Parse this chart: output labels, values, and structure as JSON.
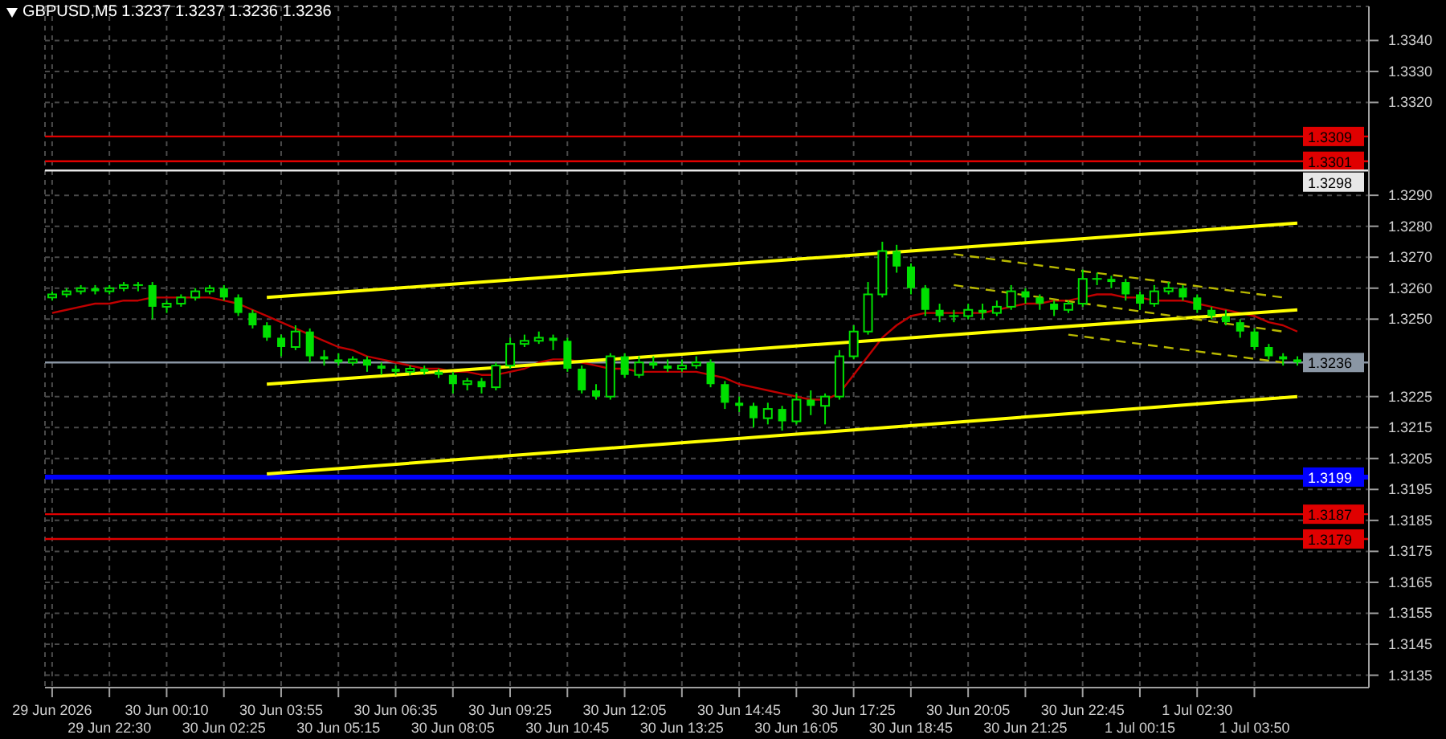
{
  "chart_data": {
    "type": "candlestick",
    "title": "GBPUSD,M5  1.3237 1.3237 1.3236 1.3236",
    "color": "#00e000",
    "categories": [
      "29 Jun 2026",
      null,
      null,
      null,
      "29 Jun 22:30",
      null,
      null,
      null,
      "30 Jun 00:10",
      null,
      null,
      null,
      "30 Jun 02:25",
      null,
      null,
      null,
      "30 Jun 03:55",
      null,
      null,
      null,
      "30 Jun 05:15",
      null,
      null,
      null,
      "30 Jun 06:35",
      null,
      null,
      null,
      "30 Jun 08:05",
      null,
      null,
      null,
      "30 Jun 09:25",
      null,
      null,
      null,
      "30 Jun 10:45",
      null,
      null,
      null,
      "30 Jun 12:05",
      null,
      null,
      null,
      "30 Jun 13:25",
      null,
      null,
      null,
      "30 Jun 14:45",
      null,
      null,
      null,
      "30 Jun 16:05",
      null,
      null,
      null,
      "30 Jun 17:25",
      null,
      null,
      null,
      "30 Jun 18:45",
      null,
      null,
      null,
      "30 Jun 20:05",
      null,
      null,
      null,
      "30 Jun 21:25",
      null,
      null,
      null,
      "30 Jun 22:45",
      null,
      null,
      null,
      "1 Jul 00:15",
      null,
      null,
      null,
      "1 Jul 02:30",
      null,
      null,
      null,
      "1 Jul 03:50",
      null,
      null,
      null
    ],
    "ohlc": [
      [
        1.3257,
        1.3259,
        1.3256,
        1.3258
      ],
      [
        1.3258,
        1.326,
        1.3257,
        1.3259
      ],
      [
        1.3259,
        1.3261,
        1.3258,
        1.326
      ],
      [
        1.326,
        1.3261,
        1.3258,
        1.3259
      ],
      [
        1.3259,
        1.3261,
        1.3258,
        1.326
      ],
      [
        1.326,
        1.3262,
        1.3259,
        1.3261
      ],
      [
        1.3261,
        1.3262,
        1.3259,
        1.3261
      ],
      [
        1.3261,
        1.3262,
        1.325,
        1.3254
      ],
      [
        1.3254,
        1.3256,
        1.3252,
        1.3255
      ],
      [
        1.3255,
        1.3258,
        1.3254,
        1.3257
      ],
      [
        1.3257,
        1.326,
        1.3256,
        1.3259
      ],
      [
        1.3259,
        1.3261,
        1.3258,
        1.326
      ],
      [
        1.326,
        1.3261,
        1.3256,
        1.3257
      ],
      [
        1.3257,
        1.3258,
        1.3251,
        1.3252
      ],
      [
        1.3252,
        1.3253,
        1.3247,
        1.3248
      ],
      [
        1.3248,
        1.3249,
        1.3243,
        1.3244
      ],
      [
        1.3244,
        1.3245,
        1.3238,
        1.3241
      ],
      [
        1.3241,
        1.3248,
        1.324,
        1.3246
      ],
      [
        1.3246,
        1.3247,
        1.3236,
        1.3238
      ],
      [
        1.3238,
        1.324,
        1.3235,
        1.3237
      ],
      [
        1.3237,
        1.3239,
        1.3235,
        1.3236
      ],
      [
        1.3236,
        1.3238,
        1.3235,
        1.3237
      ],
      [
        1.3237,
        1.3238,
        1.3233,
        1.3235
      ],
      [
        1.3235,
        1.3236,
        1.3232,
        1.3234
      ],
      [
        1.3234,
        1.3235,
        1.3232,
        1.3233
      ],
      [
        1.3233,
        1.3235,
        1.3232,
        1.3234
      ],
      [
        1.3234,
        1.3235,
        1.3232,
        1.3233
      ],
      [
        1.3233,
        1.3234,
        1.3231,
        1.3232
      ],
      [
        1.3232,
        1.3233,
        1.3226,
        1.3229
      ],
      [
        1.3229,
        1.3231,
        1.3227,
        1.323
      ],
      [
        1.323,
        1.3231,
        1.3226,
        1.3228
      ],
      [
        1.3228,
        1.3236,
        1.3227,
        1.3235
      ],
      [
        1.3235,
        1.3244,
        1.3234,
        1.3242
      ],
      [
        1.3242,
        1.3245,
        1.3241,
        1.3243
      ],
      [
        1.3243,
        1.3246,
        1.3242,
        1.3244
      ],
      [
        1.3244,
        1.3245,
        1.324,
        1.3243
      ],
      [
        1.3243,
        1.3244,
        1.3233,
        1.3234
      ],
      [
        1.3234,
        1.3235,
        1.3226,
        1.3227
      ],
      [
        1.3227,
        1.3229,
        1.3224,
        1.3225
      ],
      [
        1.3225,
        1.3239,
        1.3224,
        1.3238
      ],
      [
        1.3238,
        1.3239,
        1.3231,
        1.3232
      ],
      [
        1.3232,
        1.3238,
        1.3231,
        1.3236
      ],
      [
        1.3236,
        1.3238,
        1.3234,
        1.3235
      ],
      [
        1.3235,
        1.3237,
        1.3233,
        1.3234
      ],
      [
        1.3234,
        1.3237,
        1.3233,
        1.3235
      ],
      [
        1.3235,
        1.3238,
        1.3234,
        1.3236
      ],
      [
        1.3236,
        1.3237,
        1.3228,
        1.3229
      ],
      [
        1.3229,
        1.323,
        1.3221,
        1.3223
      ],
      [
        1.3223,
        1.3225,
        1.322,
        1.3222
      ],
      [
        1.3222,
        1.3223,
        1.3215,
        1.3218
      ],
      [
        1.3218,
        1.3223,
        1.3216,
        1.3221
      ],
      [
        1.3221,
        1.3222,
        1.3214,
        1.3217
      ],
      [
        1.3217,
        1.3226,
        1.3216,
        1.3224
      ],
      [
        1.3224,
        1.3227,
        1.3219,
        1.3222
      ],
      [
        1.3222,
        1.3226,
        1.3216,
        1.3225
      ],
      [
        1.3225,
        1.324,
        1.3224,
        1.3238
      ],
      [
        1.3238,
        1.3248,
        1.3237,
        1.3246
      ],
      [
        1.3246,
        1.3262,
        1.3245,
        1.3258
      ],
      [
        1.3258,
        1.3275,
        1.3257,
        1.3272
      ],
      [
        1.3272,
        1.3274,
        1.3265,
        1.3267
      ],
      [
        1.3267,
        1.3268,
        1.3258,
        1.326
      ],
      [
        1.326,
        1.3261,
        1.3251,
        1.3253
      ],
      [
        1.3253,
        1.3255,
        1.3249,
        1.3251
      ],
      [
        1.3251,
        1.3253,
        1.3249,
        1.3251
      ],
      [
        1.3251,
        1.3255,
        1.325,
        1.3253
      ],
      [
        1.3253,
        1.3255,
        1.325,
        1.3252
      ],
      [
        1.3252,
        1.3256,
        1.3251,
        1.3254
      ],
      [
        1.3254,
        1.3261,
        1.3253,
        1.3259
      ],
      [
        1.3259,
        1.326,
        1.3255,
        1.3257
      ],
      [
        1.3257,
        1.3258,
        1.3253,
        1.3255
      ],
      [
        1.3255,
        1.3256,
        1.3251,
        1.3253
      ],
      [
        1.3253,
        1.3256,
        1.3252,
        1.3255
      ],
      [
        1.3255,
        1.3266,
        1.3254,
        1.3263
      ],
      [
        1.3263,
        1.3265,
        1.3261,
        1.3263
      ],
      [
        1.3263,
        1.3264,
        1.326,
        1.3262
      ],
      [
        1.3262,
        1.3263,
        1.3256,
        1.3258
      ],
      [
        1.3258,
        1.3259,
        1.3253,
        1.3255
      ],
      [
        1.3255,
        1.3261,
        1.3254,
        1.3259
      ],
      [
        1.3259,
        1.3262,
        1.3258,
        1.326
      ],
      [
        1.326,
        1.3261,
        1.3256,
        1.3257
      ],
      [
        1.3257,
        1.3258,
        1.3252,
        1.3253
      ],
      [
        1.3253,
        1.3254,
        1.325,
        1.3251
      ],
      [
        1.3251,
        1.3253,
        1.3248,
        1.3249
      ],
      [
        1.3249,
        1.325,
        1.3244,
        1.3246
      ],
      [
        1.3246,
        1.3247,
        1.324,
        1.3241
      ],
      [
        1.3241,
        1.3242,
        1.3237,
        1.3238
      ],
      [
        1.3238,
        1.3239,
        1.3235,
        1.3237
      ],
      [
        1.3237,
        1.3238,
        1.3235,
        1.3236
      ]
    ],
    "series": [
      {
        "type": "line",
        "color": "#c00000",
        "line_style": "solid",
        "values": [
          1.3252,
          1.3253,
          1.3254,
          1.3255,
          1.3255,
          1.3256,
          1.3256,
          1.3257,
          1.3257,
          1.3257,
          1.3257,
          1.3257,
          1.3256,
          1.3255,
          1.3253,
          1.3251,
          1.3249,
          1.3247,
          1.3245,
          1.3243,
          1.3241,
          1.324,
          1.3238,
          1.3237,
          1.3236,
          1.3235,
          1.3234,
          1.3234,
          1.3233,
          1.3233,
          1.3232,
          1.3232,
          1.3233,
          1.3234,
          1.3236,
          1.3237,
          1.3237,
          1.3236,
          1.3235,
          1.3234,
          1.3234,
          1.3233,
          1.3233,
          1.3233,
          1.3233,
          1.3233,
          1.3232,
          1.3231,
          1.3229,
          1.3228,
          1.3227,
          1.3226,
          1.3225,
          1.3224,
          1.3224,
          1.3226,
          1.3232,
          1.3238,
          1.3244,
          1.3248,
          1.3251,
          1.3252,
          1.3252,
          1.3252,
          1.3252,
          1.3252,
          1.3253,
          1.3254,
          1.3255,
          1.3255,
          1.3256,
          1.3256,
          1.3257,
          1.3258,
          1.3258,
          1.3257,
          1.3257,
          1.3256,
          1.3256,
          1.3256,
          1.3255,
          1.3254,
          1.3253,
          1.3252,
          1.3251,
          1.3249,
          1.3248,
          1.3246
        ]
      },
      {
        "type": "line",
        "color": "#ffff00",
        "line_style": "solid",
        "values": [
          null,
          null,
          null,
          null,
          null,
          null,
          null,
          null,
          null,
          null,
          null,
          null,
          null,
          null,
          null,
          1.3257,
          null,
          null,
          null,
          null,
          null,
          null,
          null,
          null,
          null,
          null,
          null,
          null,
          null,
          null,
          null,
          null,
          null,
          null,
          null,
          null,
          null,
          null,
          null,
          null,
          null,
          null,
          null,
          null,
          null,
          null,
          null,
          null,
          null,
          null,
          null,
          null,
          null,
          null,
          null,
          null,
          null,
          null,
          null,
          null,
          null,
          null,
          null,
          null,
          null,
          null,
          null,
          null,
          null,
          null,
          null,
          null,
          null,
          null,
          null,
          null,
          null,
          null,
          null,
          null,
          null,
          null,
          null,
          null,
          null,
          null,
          null,
          1.3281
        ]
      },
      {
        "type": "line",
        "color": "#ffff00",
        "line_style": "solid",
        "values": [
          null,
          null,
          null,
          null,
          null,
          null,
          null,
          null,
          null,
          null,
          null,
          null,
          null,
          null,
          null,
          1.3229,
          null,
          null,
          null,
          null,
          null,
          null,
          null,
          null,
          null,
          null,
          null,
          null,
          null,
          null,
          null,
          null,
          null,
          null,
          null,
          null,
          null,
          null,
          null,
          null,
          null,
          null,
          null,
          null,
          null,
          null,
          null,
          null,
          null,
          null,
          null,
          null,
          null,
          null,
          null,
          null,
          null,
          null,
          null,
          null,
          null,
          null,
          null,
          null,
          null,
          null,
          null,
          null,
          null,
          null,
          null,
          null,
          null,
          null,
          null,
          null,
          null,
          null,
          null,
          null,
          null,
          null,
          null,
          null,
          null,
          null,
          null,
          1.3253
        ]
      },
      {
        "type": "line",
        "color": "#ffff00",
        "line_style": "solid",
        "values": [
          null,
          null,
          null,
          null,
          null,
          null,
          null,
          null,
          null,
          null,
          null,
          null,
          null,
          null,
          null,
          1.32,
          null,
          null,
          null,
          null,
          null,
          null,
          null,
          null,
          null,
          null,
          null,
          null,
          null,
          null,
          null,
          null,
          null,
          null,
          null,
          null,
          null,
          null,
          null,
          null,
          null,
          null,
          null,
          null,
          null,
          null,
          null,
          null,
          null,
          null,
          null,
          null,
          null,
          null,
          null,
          null,
          null,
          null,
          null,
          null,
          null,
          null,
          null,
          null,
          null,
          null,
          null,
          null,
          null,
          null,
          null,
          null,
          null,
          null,
          null,
          null,
          null,
          null,
          null,
          null,
          null,
          null,
          null,
          null,
          null,
          null,
          null,
          1.3225
        ]
      },
      {
        "type": "line",
        "color": "#b8b800",
        "line_style": "dashed",
        "values": [
          null,
          null,
          null,
          null,
          null,
          null,
          null,
          null,
          null,
          null,
          null,
          null,
          null,
          null,
          null,
          null,
          null,
          null,
          null,
          null,
          null,
          null,
          null,
          null,
          null,
          null,
          null,
          null,
          null,
          null,
          null,
          null,
          null,
          null,
          null,
          null,
          null,
          null,
          null,
          null,
          null,
          null,
          null,
          null,
          null,
          null,
          null,
          null,
          null,
          null,
          null,
          null,
          null,
          null,
          null,
          null,
          null,
          null,
          null,
          null,
          null,
          null,
          null,
          1.3271,
          null,
          null,
          null,
          null,
          null,
          null,
          null,
          null,
          null,
          null,
          null,
          null,
          null,
          null,
          null,
          null,
          null,
          null,
          null,
          null,
          null,
          null,
          1.3257,
          null
        ]
      },
      {
        "type": "line",
        "color": "#b8b800",
        "line_style": "dashed",
        "values": [
          null,
          null,
          null,
          null,
          null,
          null,
          null,
          null,
          null,
          null,
          null,
          null,
          null,
          null,
          null,
          null,
          null,
          null,
          null,
          null,
          null,
          null,
          null,
          null,
          null,
          null,
          null,
          null,
          null,
          null,
          null,
          null,
          null,
          null,
          null,
          null,
          null,
          null,
          null,
          null,
          null,
          null,
          null,
          null,
          null,
          null,
          null,
          null,
          null,
          null,
          null,
          null,
          null,
          null,
          null,
          null,
          null,
          null,
          null,
          null,
          null,
          null,
          null,
          1.3261,
          null,
          null,
          null,
          null,
          null,
          null,
          null,
          null,
          null,
          null,
          null,
          null,
          null,
          null,
          null,
          null,
          null,
          null,
          null,
          null,
          null,
          null,
          1.3246,
          null
        ]
      },
      {
        "type": "line",
        "color": "#b8b800",
        "line_style": "dashed",
        "values": [
          null,
          null,
          null,
          null,
          null,
          null,
          null,
          null,
          null,
          null,
          null,
          null,
          null,
          null,
          null,
          null,
          null,
          null,
          null,
          null,
          null,
          null,
          null,
          null,
          null,
          null,
          null,
          null,
          null,
          null,
          null,
          null,
          null,
          null,
          null,
          null,
          null,
          null,
          null,
          null,
          null,
          null,
          null,
          null,
          null,
          null,
          null,
          null,
          null,
          null,
          null,
          null,
          null,
          null,
          null,
          null,
          null,
          null,
          null,
          null,
          null,
          null,
          null,
          null,
          null,
          null,
          null,
          null,
          null,
          null,
          null,
          1.3245,
          null,
          null,
          null,
          null,
          null,
          null,
          null,
          null,
          null,
          null,
          null,
          null,
          null,
          null,
          1.3236,
          null
        ]
      }
    ],
    "ylim": [
      1.3131,
      1.3351
    ],
    "yticks": [
      {
        "value": 1.334,
        "label": "1.3340"
      },
      {
        "value": 1.333,
        "label": "1.3330"
      },
      {
        "value": 1.332,
        "label": "1.3320"
      },
      {
        "value": 1.329,
        "label": "1.3290"
      },
      {
        "value": 1.328,
        "label": "1.3280"
      },
      {
        "value": 1.327,
        "label": "1.3270"
      },
      {
        "value": 1.326,
        "label": "1.3260"
      },
      {
        "value": 1.325,
        "label": "1.3250"
      },
      1.3225,
      1.3215,
      1.3205,
      1.3195,
      1.3185,
      1.3175,
      1.3165,
      1.3155,
      1.3145,
      1.3135
    ],
    "ref_lines": [
      {
        "axis": "y",
        "value": 1.3309,
        "label": "1.3309",
        "color": "#e00000",
        "line_style": "solid"
      },
      {
        "axis": "y",
        "value": 1.3301,
        "label": "1.3301",
        "color": "#e00000",
        "line_style": "solid"
      },
      {
        "axis": "y",
        "value": 1.3298,
        "label": "1.3298",
        "color": "#e8e8e8",
        "line_style": "solid"
      },
      {
        "axis": "y",
        "value": 1.3236,
        "label": "1.3236",
        "color": "#8a96a4",
        "line_style": "solid"
      },
      {
        "axis": "y",
        "value": 1.3199,
        "label": "1.3199",
        "color": "#0000ff",
        "line_style": "solid"
      },
      {
        "axis": "y",
        "value": 1.3187,
        "label": "1.3187",
        "color": "#e00000",
        "line_style": "solid"
      },
      {
        "axis": "y",
        "value": 1.3179,
        "label": "1.3179",
        "color": "#e00000",
        "line_style": "solid"
      }
    ],
    "grid": true,
    "legend": false
  }
}
